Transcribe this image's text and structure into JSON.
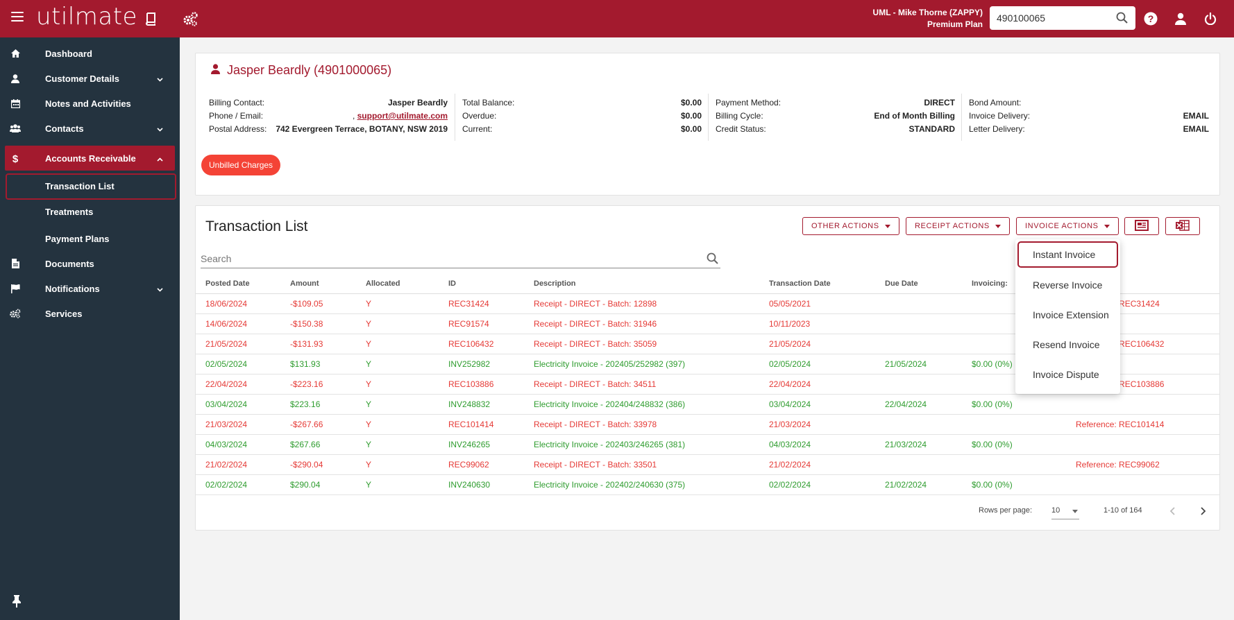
{
  "app": {
    "logo_text": "utilmate",
    "account_line1": "UML - Mike Thorne (ZAPPY)",
    "account_line2": "Premium Plan",
    "search_value": "490100065"
  },
  "sidebar": {
    "items": [
      {
        "label": "Dashboard"
      },
      {
        "label": "Customer Details"
      },
      {
        "label": "Notes and Activities"
      },
      {
        "label": "Contacts"
      },
      {
        "label": "Accounts Receivable"
      },
      {
        "label": "Documents"
      },
      {
        "label": "Notifications"
      },
      {
        "label": "Services"
      }
    ],
    "subitems": [
      {
        "label": "Transaction List"
      },
      {
        "label": "Treatments"
      },
      {
        "label": "Payment Plans"
      }
    ]
  },
  "customer": {
    "name": "Jasper Beardly (4901000065)",
    "col1": [
      {
        "label": "Billing Contact:",
        "value": "Jasper Beardly"
      },
      {
        "label": "Phone / Email:",
        "value_prefix": ", ",
        "value": "support@utilmate.com"
      },
      {
        "label": "Postal Address:",
        "value": "742 Evergreen Terrace, BOTANY, NSW 2019"
      }
    ],
    "col2": [
      {
        "label": "Total Balance:",
        "value": "$0.00"
      },
      {
        "label": "Overdue:",
        "value": "$0.00"
      },
      {
        "label": "Current:",
        "value": "$0.00"
      }
    ],
    "col3": [
      {
        "label": "Payment Method:",
        "value": "DIRECT"
      },
      {
        "label": "Billing Cycle:",
        "value": "End of Month Billing"
      },
      {
        "label": "Credit Status:",
        "value": "STANDARD"
      }
    ],
    "col4": [
      {
        "label": "Bond Amount:",
        "value": ""
      },
      {
        "label": "Invoice Delivery:",
        "value": "EMAIL"
      },
      {
        "label": "Letter Delivery:",
        "value": "EMAIL"
      }
    ],
    "unbilled_label": "Unbilled Charges"
  },
  "transactions": {
    "title": "Transaction List",
    "other_actions": "OTHER ACTIONS",
    "receipt_actions": "RECEIPT ACTIONS",
    "invoice_actions": "INVOICE ACTIONS",
    "search_placeholder": "Search",
    "columns": [
      "Posted Date",
      "Amount",
      "Allocated",
      "ID",
      "Description",
      "Transaction Date",
      "Due Date",
      "Invoicing:",
      ""
    ],
    "rows": [
      {
        "posted": "18/06/2024",
        "amount": "-$109.05",
        "allocated": "Y",
        "id": "REC31424",
        "desc": "Receipt - DIRECT - Batch: 12898",
        "txdate": "05/05/2021",
        "due": "",
        "invoicing": "",
        "reference": "Reference: REC31424",
        "type": "red"
      },
      {
        "posted": "14/06/2024",
        "amount": "-$150.38",
        "allocated": "Y",
        "id": "REC91574",
        "desc": "Receipt - DIRECT - Batch: 31946",
        "txdate": "10/11/2023",
        "due": "",
        "invoicing": "",
        "reference": "",
        "type": "red"
      },
      {
        "posted": "21/05/2024",
        "amount": "-$131.93",
        "allocated": "Y",
        "id": "REC106432",
        "desc": "Receipt - DIRECT - Batch: 35059",
        "txdate": "21/05/2024",
        "due": "",
        "invoicing": "",
        "reference": "Reference: REC106432",
        "type": "red"
      },
      {
        "posted": "02/05/2024",
        "amount": "$131.93",
        "allocated": "Y",
        "id": "INV252982",
        "desc": "Electricity Invoice - 202405/252982 (397)",
        "txdate": "02/05/2024",
        "due": "21/05/2024",
        "invoicing": "$0.00 (0%)",
        "reference": "",
        "type": "green"
      },
      {
        "posted": "22/04/2024",
        "amount": "-$223.16",
        "allocated": "Y",
        "id": "REC103886",
        "desc": "Receipt - DIRECT - Batch: 34511",
        "txdate": "22/04/2024",
        "due": "",
        "invoicing": "",
        "reference": "Reference: REC103886",
        "type": "red"
      },
      {
        "posted": "03/04/2024",
        "amount": "$223.16",
        "allocated": "Y",
        "id": "INV248832",
        "desc": "Electricity Invoice - 202404/248832 (386)",
        "txdate": "03/04/2024",
        "due": "22/04/2024",
        "invoicing": "$0.00 (0%)",
        "reference": "",
        "type": "green"
      },
      {
        "posted": "21/03/2024",
        "amount": "-$267.66",
        "allocated": "Y",
        "id": "REC101414",
        "desc": "Receipt - DIRECT - Batch: 33978",
        "txdate": "21/03/2024",
        "due": "",
        "invoicing": "",
        "reference": "Reference: REC101414",
        "type": "red"
      },
      {
        "posted": "04/03/2024",
        "amount": "$267.66",
        "allocated": "Y",
        "id": "INV246265",
        "desc": "Electricity Invoice - 202403/246265 (381)",
        "txdate": "04/03/2024",
        "due": "21/03/2024",
        "invoicing": "$0.00 (0%)",
        "reference": "",
        "type": "green"
      },
      {
        "posted": "21/02/2024",
        "amount": "-$290.04",
        "allocated": "Y",
        "id": "REC99062",
        "desc": "Receipt - DIRECT - Batch: 33501",
        "txdate": "21/02/2024",
        "due": "",
        "invoicing": "",
        "reference": "Reference: REC99062",
        "type": "red"
      },
      {
        "posted": "02/02/2024",
        "amount": "$290.04",
        "allocated": "Y",
        "id": "INV240630",
        "desc": "Electricity Invoice - 202402/240630 (375)",
        "txdate": "02/02/2024",
        "due": "21/02/2024",
        "invoicing": "$0.00 (0%)",
        "reference": "",
        "type": "green"
      }
    ],
    "rows_per_page_label": "Rows per page:",
    "rows_per_page_value": "10",
    "page_range": "1-10 of 164"
  },
  "invoice_menu": {
    "items": [
      "Instant Invoice",
      "Reverse Invoice",
      "Invoice Extension",
      "Resend Invoice",
      "Invoice Dispute"
    ]
  },
  "colors": {
    "brand": "#a31a2e",
    "sidebar_bg": "#24333f",
    "credit_red": "#e53935",
    "debit_green": "#2e9c2e",
    "unbilled_button": "#f44336"
  },
  "icons": {
    "menu": "hamburger-icon",
    "book": "book-icon",
    "settings": "gears-icon",
    "help": "help-icon",
    "user": "user-icon",
    "power": "power-icon",
    "search": "search-icon",
    "export_pdf": "document-icon",
    "export_excel": "excel-icon",
    "pin": "pin-icon"
  }
}
